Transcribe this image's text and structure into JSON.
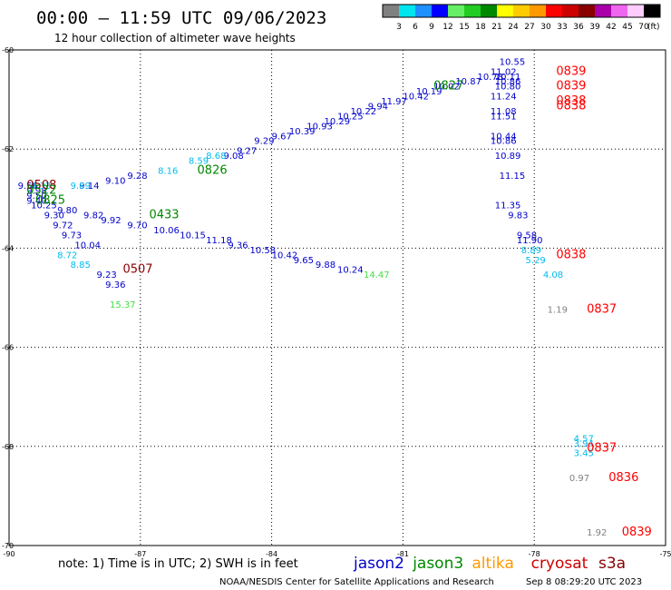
{
  "header": {
    "title": "00:00 – 11:59 UTC 09/06/2023",
    "subtitle": "12 hour collection of altimeter wave heights"
  },
  "colorbar": {
    "ticks": [
      "3",
      "6",
      "9",
      "12",
      "15",
      "18",
      "21",
      "24",
      "27",
      "30",
      "33",
      "36",
      "39",
      "42",
      "45",
      "70"
    ],
    "unit": "(ft)",
    "colors": [
      "#808080",
      "#00e5ee",
      "#1e90ff",
      "#0000ff",
      "#66ee66",
      "#22cc22",
      "#008800",
      "#ffff00",
      "#ffcc00",
      "#ff9900",
      "#ff0000",
      "#cc0000",
      "#880000",
      "#aa00aa",
      "#ee66ee",
      "#ffccff",
      "#000000"
    ]
  },
  "map": {
    "lon_range": [
      -90,
      -75
    ],
    "lat_range": [
      -70,
      -60
    ],
    "x_ticks": [
      {
        "v": -90,
        "label": "-90"
      },
      {
        "v": -87,
        "label": "-87"
      },
      {
        "v": -84,
        "label": "-84"
      },
      {
        "v": -81,
        "label": "-81"
      },
      {
        "v": -78,
        "label": "-78"
      },
      {
        "v": -75,
        "label": "-75"
      }
    ],
    "y_ticks": [
      {
        "v": -60,
        "label": "-60"
      },
      {
        "v": -62,
        "label": "-62"
      },
      {
        "v": -64,
        "label": "-64"
      },
      {
        "v": -66,
        "label": "-66"
      },
      {
        "v": -68,
        "label": "-68"
      },
      {
        "v": -70,
        "label": "-70"
      }
    ]
  },
  "footer": {
    "note": "note:  1) Time is in UTC;  2) SWH is in feet",
    "legend": [
      {
        "label": "jason2",
        "color": "#0000cc"
      },
      {
        "label": "jason3",
        "color": "#008800"
      },
      {
        "label": "altika",
        "color": "#ff9900"
      },
      {
        "label": "cryosat",
        "color": "#cc0000"
      },
      {
        "label": "s3a",
        "color": "#880000"
      }
    ],
    "credit": "NOAA/NESDIS Center for Satellite Applications and Research",
    "timestamp": "Sep  8 08:29:20 UTC 2023"
  },
  "chart_data": {
    "type": "scatter",
    "title": "00:00 – 11:59 UTC 09/06/2023",
    "xlim": [
      -90,
      -75
    ],
    "ylim": [
      -70,
      -60
    ],
    "grid": true,
    "track_times": [
      {
        "lon": -89.6,
        "lat": -62.8,
        "label": "0508",
        "color": "#880000"
      },
      {
        "lon": -89.6,
        "lat": -62.9,
        "label": "0522",
        "color": "#008800"
      },
      {
        "lon": -89.4,
        "lat": -63.1,
        "label": "0825",
        "color": "#008800"
      },
      {
        "lon": -86.8,
        "lat": -63.4,
        "label": "0433",
        "color": "#008800"
      },
      {
        "lon": -87.4,
        "lat": -64.5,
        "label": "0507",
        "color": "#880000"
      },
      {
        "lon": -85.7,
        "lat": -62.5,
        "label": "0826",
        "color": "#008800"
      },
      {
        "lon": -80.3,
        "lat": -60.8,
        "label": "0827",
        "color": "#008800"
      },
      {
        "lon": -77.5,
        "lat": -60.5,
        "label": "0839",
        "color": "#ff0000"
      },
      {
        "lon": -77.5,
        "lat": -60.8,
        "label": "0839",
        "color": "#ff0000"
      },
      {
        "lon": -77.5,
        "lat": -61.1,
        "label": "0838",
        "color": "#ff0000"
      },
      {
        "lon": -77.5,
        "lat": -61.2,
        "label": "0838",
        "color": "#ff0000"
      },
      {
        "lon": -77.5,
        "lat": -64.2,
        "label": "0838",
        "color": "#ff0000"
      },
      {
        "lon": -76.8,
        "lat": -65.3,
        "label": "0837",
        "color": "#ff0000"
      },
      {
        "lon": -76.8,
        "lat": -68.1,
        "label": "0837",
        "color": "#ff0000"
      },
      {
        "lon": -76.3,
        "lat": -68.7,
        "label": "0836",
        "color": "#ff0000"
      },
      {
        "lon": -76.0,
        "lat": -69.8,
        "label": "0839",
        "color": "#ff0000"
      }
    ],
    "series": [
      {
        "color": "#0000cc",
        "points": [
          {
            "lon": -89.8,
            "lat": -62.8,
            "v": "9.56"
          },
          {
            "lon": -89.6,
            "lat": -62.9,
            "v": "9.98"
          },
          {
            "lon": -89.6,
            "lat": -63.0,
            "v": "9.50"
          },
          {
            "lon": -89.6,
            "lat": -63.1,
            "v": "9.40"
          },
          {
            "lon": -89.5,
            "lat": -63.2,
            "v": "10.25"
          },
          {
            "lon": -89.2,
            "lat": -63.4,
            "v": "9.30"
          },
          {
            "lon": -89.0,
            "lat": -63.6,
            "v": "9.72"
          },
          {
            "lon": -88.8,
            "lat": -63.8,
            "v": "9.73"
          },
          {
            "lon": -88.5,
            "lat": -64.0,
            "v": "10.04"
          },
          {
            "lon": -88.0,
            "lat": -64.6,
            "v": "9.23"
          },
          {
            "lon": -87.8,
            "lat": -64.8,
            "v": "9.36"
          },
          {
            "lon": -88.4,
            "lat": -62.8,
            "v": "9.14"
          },
          {
            "lon": -87.8,
            "lat": -62.7,
            "v": "9.10"
          },
          {
            "lon": -87.3,
            "lat": -62.6,
            "v": "9.28"
          },
          {
            "lon": -85.1,
            "lat": -62.2,
            "v": "9.08"
          },
          {
            "lon": -84.8,
            "lat": -62.1,
            "v": "9.27"
          },
          {
            "lon": -84.4,
            "lat": -61.9,
            "v": "9.29"
          },
          {
            "lon": -84.0,
            "lat": -61.8,
            "v": "9.67"
          },
          {
            "lon": -83.6,
            "lat": -61.7,
            "v": "10.39"
          },
          {
            "lon": -83.2,
            "lat": -61.6,
            "v": "10.93"
          },
          {
            "lon": -82.8,
            "lat": -61.5,
            "v": "10.29"
          },
          {
            "lon": -82.5,
            "lat": -61.4,
            "v": "10.25"
          },
          {
            "lon": -82.2,
            "lat": -61.3,
            "v": "10.22"
          },
          {
            "lon": -81.8,
            "lat": -61.2,
            "v": "9.94"
          },
          {
            "lon": -81.5,
            "lat": -61.1,
            "v": "11.97"
          },
          {
            "lon": -81.0,
            "lat": -61.0,
            "v": "10.42"
          },
          {
            "lon": -80.7,
            "lat": -60.9,
            "v": "10.19"
          },
          {
            "lon": -80.3,
            "lat": -60.8,
            "v": "10.02"
          },
          {
            "lon": -79.8,
            "lat": -60.7,
            "v": "10.87"
          },
          {
            "lon": -79.3,
            "lat": -60.6,
            "v": "10.78"
          },
          {
            "lon": -79.0,
            "lat": -60.5,
            "v": "11.02"
          },
          {
            "lon": -78.8,
            "lat": -60.3,
            "v": "10.55"
          },
          {
            "lon": -78.9,
            "lat": -60.6,
            "v": "10.11"
          },
          {
            "lon": -78.9,
            "lat": -60.7,
            "v": "10.86"
          },
          {
            "lon": -78.9,
            "lat": -60.8,
            "v": "10.80"
          },
          {
            "lon": -79.0,
            "lat": -61.0,
            "v": "11.24"
          },
          {
            "lon": -79.0,
            "lat": -61.3,
            "v": "11.08"
          },
          {
            "lon": -79.0,
            "lat": -61.4,
            "v": "11.51"
          },
          {
            "lon": -79.0,
            "lat": -61.8,
            "v": "10.44"
          },
          {
            "lon": -79.0,
            "lat": -61.9,
            "v": "10.86"
          },
          {
            "lon": -78.9,
            "lat": -62.2,
            "v": "10.89"
          },
          {
            "lon": -78.8,
            "lat": -62.6,
            "v": "11.15"
          },
          {
            "lon": -78.9,
            "lat": -63.2,
            "v": "11.35"
          },
          {
            "lon": -78.6,
            "lat": -63.4,
            "v": "9.83"
          },
          {
            "lon": -78.4,
            "lat": -63.8,
            "v": "9.58"
          },
          {
            "lon": -78.4,
            "lat": -63.9,
            "v": "11.90"
          },
          {
            "lon": -88.9,
            "lat": -63.3,
            "v": "9.80"
          },
          {
            "lon": -88.3,
            "lat": -63.4,
            "v": "9.82"
          },
          {
            "lon": -87.9,
            "lat": -63.5,
            "v": "9.92"
          },
          {
            "lon": -87.3,
            "lat": -63.6,
            "v": "9.70"
          },
          {
            "lon": -86.7,
            "lat": -63.7,
            "v": "10.06"
          },
          {
            "lon": -86.1,
            "lat": -63.8,
            "v": "10.15"
          },
          {
            "lon": -85.5,
            "lat": -63.9,
            "v": "11.18"
          },
          {
            "lon": -85.0,
            "lat": -64.0,
            "v": "9.36"
          },
          {
            "lon": -84.5,
            "lat": -64.1,
            "v": "10.58"
          },
          {
            "lon": -84.0,
            "lat": -64.2,
            "v": "10.42"
          },
          {
            "lon": -83.5,
            "lat": -64.3,
            "v": "9.65"
          },
          {
            "lon": -83.0,
            "lat": -64.4,
            "v": "9.88"
          },
          {
            "lon": -82.5,
            "lat": -64.5,
            "v": "10.24"
          }
        ]
      },
      {
        "color": "#00bbee",
        "points": [
          {
            "lon": -89.5,
            "lat": -62.8,
            "v": "9.33"
          },
          {
            "lon": -88.6,
            "lat": -62.8,
            "v": "9.89"
          },
          {
            "lon": -86.6,
            "lat": -62.5,
            "v": "8.16"
          },
          {
            "lon": -85.9,
            "lat": -62.3,
            "v": "8.59"
          },
          {
            "lon": -85.5,
            "lat": -62.2,
            "v": "8.68"
          },
          {
            "lon": -88.9,
            "lat": -64.2,
            "v": "8.72"
          },
          {
            "lon": -88.6,
            "lat": -64.4,
            "v": "8.85"
          },
          {
            "lon": -78.3,
            "lat": -64.1,
            "v": "8.89"
          },
          {
            "lon": -78.2,
            "lat": -64.3,
            "v": "5.29"
          },
          {
            "lon": -77.8,
            "lat": -64.6,
            "v": "4.08"
          },
          {
            "lon": -77.1,
            "lat": -67.9,
            "v": "4.57"
          },
          {
            "lon": -77.1,
            "lat": -68.0,
            "v": "3.94"
          },
          {
            "lon": -77.1,
            "lat": -68.2,
            "v": "3.45"
          }
        ]
      },
      {
        "color": "#44dd44",
        "points": [
          {
            "lon": -87.7,
            "lat": -65.2,
            "v": "15.37"
          },
          {
            "lon": -81.9,
            "lat": -64.6,
            "v": "14.47"
          }
        ]
      },
      {
        "color": "#808080",
        "points": [
          {
            "lon": -77.7,
            "lat": -65.3,
            "v": "1.19"
          },
          {
            "lon": -77.2,
            "lat": -68.7,
            "v": "0.97"
          },
          {
            "lon": -76.8,
            "lat": -69.8,
            "v": "1.92"
          }
        ]
      }
    ]
  }
}
